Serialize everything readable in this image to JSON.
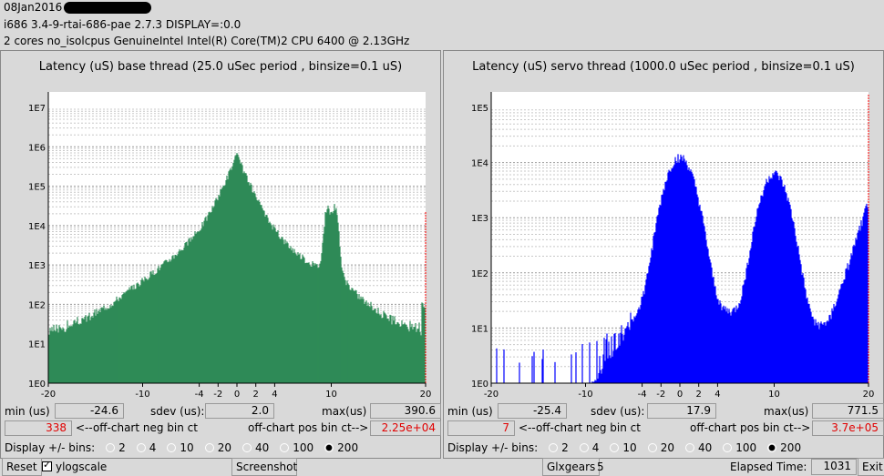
{
  "header": {
    "date": "08Jan2016",
    "line2": "i686  3.4-9-rtai-686-pae  2.7.3  DISPLAY=:0.0",
    "line3": "2 cores  no_isolcpus   GenuineIntel  Intel(R) Core(TM)2 CPU 6400 @ 2.13GHz"
  },
  "panels": [
    {
      "title": "Latency (uS) base thread (25.0 uSec period , binsize=0.1 uS)",
      "color": "#2e8b57",
      "ytick_labels": [
        "1E0",
        "1E1",
        "1E2",
        "1E3",
        "1E4",
        "1E5",
        "1E6",
        "1E7"
      ],
      "min_label": "min (us)",
      "min": "-24.6",
      "sdev_label": "sdev (us):",
      "sdev": "2.0",
      "max_label": "max(us)",
      "max": "390.6",
      "neg_count": "338",
      "neg_label": "<--off-chart neg bin ct",
      "pos_label": "off-chart pos bin ct-->",
      "pos_count": "2.25e+04",
      "display_label": "Display +/- bins:",
      "options": [
        "2",
        "4",
        "10",
        "20",
        "40",
        "100",
        "200"
      ],
      "selected": "200"
    },
    {
      "title": "Latency (uS) servo thread (1000.0 uSec period , binsize=0.1 uS)",
      "color": "#0000ff",
      "ytick_labels": [
        "1E0",
        "1E1",
        "1E2",
        "1E3",
        "1E4",
        "1E5"
      ],
      "min_label": "min (us)",
      "min": "-25.4",
      "sdev_label": "sdev (us):",
      "sdev": "17.9",
      "max_label": "max(us)",
      "max": "771.5",
      "neg_count": "7",
      "neg_label": "<--off-chart neg bin ct",
      "pos_label": "off-chart pos bin ct-->",
      "pos_count": "3.7e+05",
      "display_label": "Display +/- bins:",
      "options": [
        "2",
        "4",
        "10",
        "20",
        "40",
        "100",
        "200"
      ],
      "selected": "200"
    }
  ],
  "xtick_labels": [
    "-20",
    "-10",
    "-4",
    "-2",
    "0",
    "2",
    "4",
    "10",
    "20"
  ],
  "bottom": {
    "reset": "Reset",
    "ylogscale": "ylogscale",
    "screenshot": "Screenshot",
    "glxgears": "Glxgears",
    "glx_count": "5",
    "elapsed_label": "Elapsed Time:",
    "elapsed": "1031",
    "exit": "Exit"
  },
  "chart_data": [
    {
      "type": "bar",
      "title": "Latency (uS) base thread (25.0 uSec period , binsize=0.1 uS)",
      "x_ticks": [
        -20,
        -10,
        -4,
        -2,
        0,
        2,
        4,
        10,
        20
      ],
      "xlim": [
        -20,
        20
      ],
      "ylog": true,
      "ylim": [
        1,
        10000000
      ],
      "grid": true,
      "peaks": [
        {
          "x": 0,
          "count": 500000
        },
        {
          "x": 9.6,
          "count": 20000
        },
        {
          "x": 10.4,
          "count": 20000
        }
      ],
      "off_chart_neg": 338,
      "off_chart_pos": 22500
    },
    {
      "type": "bar",
      "title": "Latency (uS) servo thread (1000.0 uSec period , binsize=0.1 uS)",
      "x_ticks": [
        -20,
        -10,
        -4,
        -2,
        0,
        2,
        4,
        10,
        20
      ],
      "xlim": [
        -20,
        20
      ],
      "ylog": true,
      "ylim": [
        1,
        100000
      ],
      "grid": true,
      "peaks": [
        {
          "x": 0,
          "count": 10000
        },
        {
          "x": 10,
          "count": 5000
        },
        {
          "x": 20,
          "count": 2000
        }
      ],
      "off_chart_neg": 7,
      "off_chart_pos": 370000
    }
  ]
}
